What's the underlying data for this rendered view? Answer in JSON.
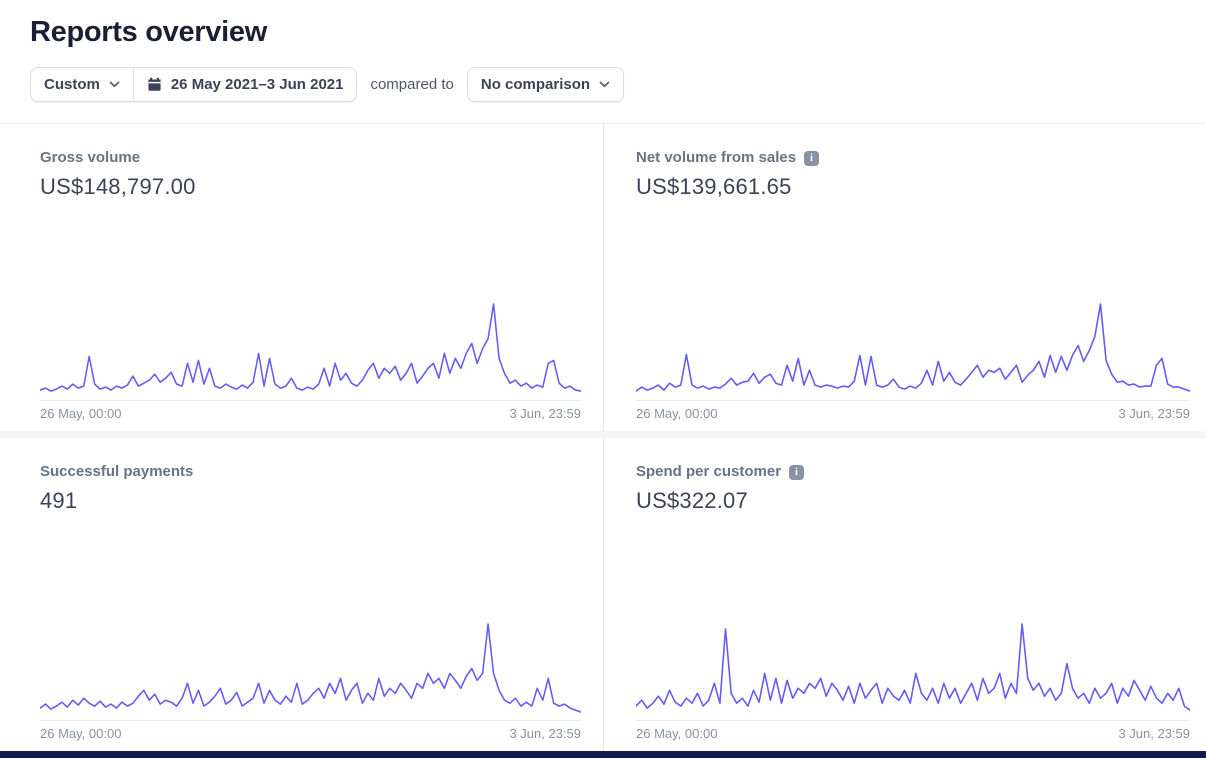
{
  "page": {
    "title": "Reports overview"
  },
  "filters": {
    "range_type_label": "Custom",
    "date_range_label": "26 May 2021–3 Jun 2021",
    "compared_to_text": "compared to",
    "comparison_label": "No comparison"
  },
  "icons": {
    "info_glyph": "i"
  },
  "colors": {
    "sparkline": "#635bf5",
    "title_text": "#1a1f36",
    "label_text": "#687385",
    "value_text": "#3c4257",
    "axis_text": "#8792a2",
    "bottom_accent_bar": "#161a4e"
  },
  "axis": {
    "start": "26 May, 00:00",
    "end": "3 Jun, 23:59"
  },
  "cards": [
    {
      "label": "Gross volume",
      "value": "US$148,797.00"
    },
    {
      "label": "Net volume from sales",
      "value": "US$139,661.65"
    },
    {
      "label": "Successful payments",
      "value": "491"
    },
    {
      "label": "Spend per customer",
      "value": "US$322.07"
    }
  ],
  "chart_data": [
    {
      "type": "line",
      "title": "Gross volume",
      "total_label": "US$148,797.00",
      "x_range": [
        "26 May, 00:00",
        "3 Jun, 23:59"
      ],
      "ylim": [
        0,
        100
      ],
      "note": "values are relative heights 0-100, no y-axis shown",
      "values": [
        8,
        10,
        7,
        9,
        12,
        9,
        14,
        10,
        12,
        42,
        14,
        9,
        11,
        8,
        12,
        10,
        13,
        22,
        12,
        15,
        18,
        24,
        16,
        20,
        26,
        14,
        12,
        35,
        16,
        38,
        14,
        30,
        12,
        10,
        14,
        11,
        9,
        13,
        10,
        16,
        45,
        12,
        40,
        14,
        10,
        12,
        20,
        10,
        8,
        11,
        9,
        14,
        30,
        12,
        35,
        18,
        25,
        15,
        12,
        18,
        28,
        35,
        20,
        30,
        25,
        32,
        18,
        25,
        35,
        15,
        22,
        30,
        35,
        20,
        45,
        25,
        40,
        30,
        45,
        55,
        35,
        50,
        60,
        95,
        40,
        25,
        15,
        18,
        12,
        15,
        10,
        13,
        11,
        35,
        38,
        15,
        10,
        12,
        8,
        7
      ]
    },
    {
      "type": "line",
      "title": "Net volume from sales",
      "total_label": "US$139,661.65",
      "x_range": [
        "26 May, 00:00",
        "3 Jun, 23:59"
      ],
      "ylim": [
        0,
        100
      ],
      "note": "values are relative heights 0-100, no y-axis shown",
      "values": [
        7,
        11,
        8,
        10,
        13,
        8,
        15,
        11,
        13,
        44,
        13,
        10,
        12,
        9,
        11,
        10,
        14,
        20,
        13,
        16,
        17,
        25,
        15,
        21,
        24,
        15,
        13,
        33,
        17,
        40,
        13,
        28,
        13,
        11,
        13,
        12,
        10,
        12,
        11,
        17,
        43,
        13,
        42,
        13,
        11,
        13,
        19,
        11,
        9,
        12,
        10,
        15,
        28,
        13,
        37,
        17,
        26,
        16,
        13,
        19,
        26,
        33,
        21,
        28,
        26,
        30,
        19,
        26,
        33,
        16,
        23,
        28,
        37,
        21,
        43,
        26,
        42,
        28,
        43,
        53,
        37,
        48,
        62,
        95,
        38,
        24,
        16,
        17,
        13,
        14,
        11,
        12,
        12,
        33,
        40,
        14,
        11,
        11,
        9,
        7
      ]
    },
    {
      "type": "line",
      "title": "Successful payments",
      "total_label": "491",
      "x_range": [
        "26 May, 00:00",
        "3 Jun, 23:59"
      ],
      "ylim": [
        0,
        100
      ],
      "note": "values are relative heights 0-100, no y-axis shown",
      "values": [
        10,
        14,
        9,
        12,
        16,
        11,
        18,
        13,
        20,
        15,
        12,
        17,
        11,
        14,
        10,
        16,
        12,
        15,
        22,
        28,
        18,
        24,
        14,
        18,
        16,
        12,
        20,
        35,
        15,
        28,
        12,
        16,
        22,
        30,
        14,
        18,
        26,
        12,
        16,
        20,
        35,
        15,
        28,
        18,
        14,
        22,
        16,
        35,
        14,
        18,
        25,
        30,
        20,
        35,
        25,
        40,
        18,
        28,
        35,
        15,
        25,
        18,
        40,
        22,
        30,
        25,
        35,
        28,
        20,
        35,
        30,
        45,
        35,
        40,
        30,
        45,
        38,
        30,
        42,
        50,
        38,
        45,
        95,
        45,
        28,
        18,
        15,
        20,
        12,
        16,
        12,
        30,
        18,
        40,
        15,
        12,
        14,
        10,
        8,
        6
      ]
    },
    {
      "type": "line",
      "title": "Spend per customer",
      "total_label": "US$322.07",
      "x_range": [
        "26 May, 00:00",
        "3 Jun, 23:59"
      ],
      "ylim": [
        0,
        100
      ],
      "note": "values are relative heights 0-100, no y-axis shown",
      "values": [
        12,
        18,
        10,
        15,
        22,
        14,
        28,
        16,
        12,
        20,
        15,
        25,
        12,
        18,
        35,
        15,
        90,
        25,
        15,
        20,
        12,
        28,
        16,
        45,
        18,
        40,
        15,
        38,
        20,
        30,
        25,
        35,
        30,
        40,
        22,
        35,
        28,
        18,
        32,
        15,
        35,
        20,
        28,
        35,
        15,
        30,
        22,
        18,
        28,
        15,
        45,
        25,
        18,
        30,
        15,
        35,
        20,
        30,
        15,
        25,
        35,
        18,
        40,
        25,
        30,
        45,
        20,
        35,
        25,
        95,
        40,
        28,
        35,
        22,
        30,
        18,
        25,
        55,
        30,
        20,
        25,
        15,
        30,
        20,
        25,
        35,
        15,
        30,
        22,
        38,
        28,
        18,
        32,
        20,
        15,
        25,
        18,
        30,
        12,
        8
      ]
    }
  ]
}
